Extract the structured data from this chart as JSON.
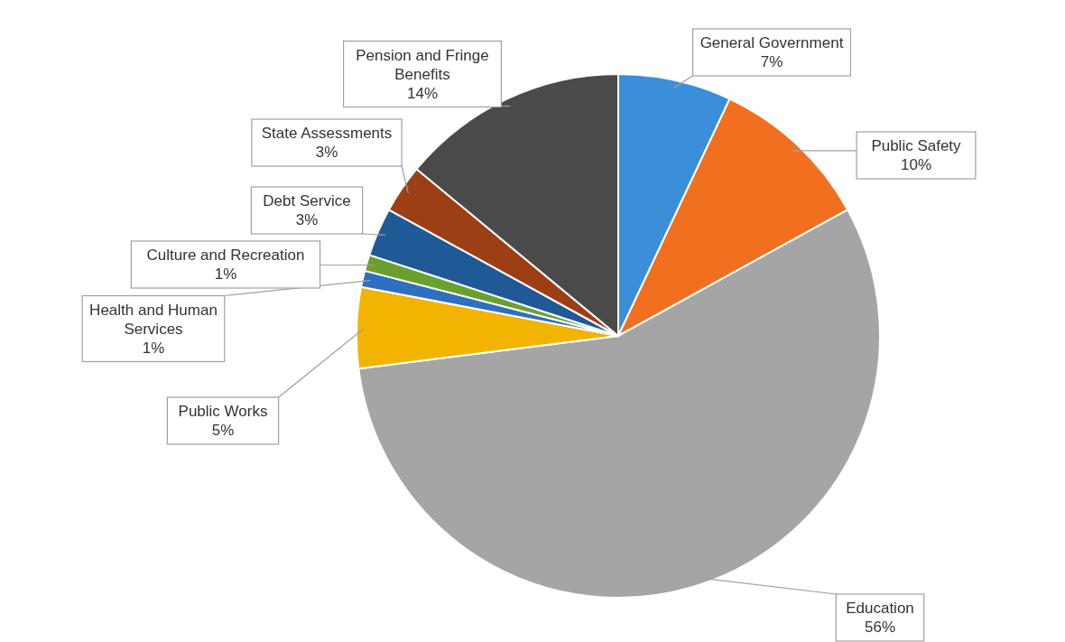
{
  "chart_data": {
    "type": "pie",
    "categories": [
      "General Government",
      "Public Safety",
      "Education",
      "Public Works",
      "Health and Human Services",
      "Culture and Recreation",
      "Debt Service",
      "State Assessments",
      "Pension and Fringe Benefits"
    ],
    "values": [
      7,
      10,
      56,
      5,
      1,
      1,
      3,
      3,
      14
    ],
    "value_labels": [
      "7%",
      "10%",
      "56%",
      "5%",
      "1%",
      "1%",
      "3%",
      "3%",
      "14%"
    ],
    "colors": [
      "#3a8fd8",
      "#f07020",
      "#a5a5a5",
      "#f2b400",
      "#2e6fc0",
      "#6aa12e",
      "#1f5a96",
      "#9c3f14",
      "#4a4a4a"
    ]
  }
}
